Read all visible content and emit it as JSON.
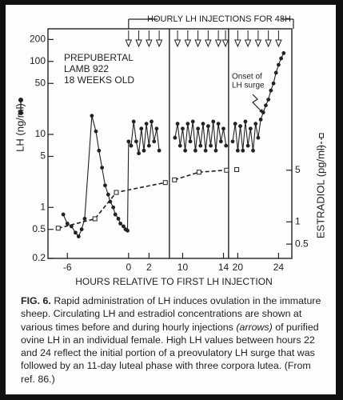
{
  "chart_data": {
    "type": "line",
    "injection_label": "HOURLY LH INJECTIONS FOR 48H",
    "annotations": [
      "PREPUBERTAL",
      "LAMB 922",
      "18 WEEKS OLD"
    ],
    "surge_label": [
      "Onset of",
      "LH surge"
    ],
    "ylabel": "LH (ng/ml)",
    "y2label": "ESTRADIOL (pg/ml)",
    "xlabel": "HOURS RELATIVE TO FIRST LH INJECTION",
    "log_scale": true,
    "ylim": [
      0.2,
      280
    ],
    "yticks": [
      0.2,
      0.5,
      1,
      5,
      10,
      50,
      100,
      200
    ],
    "y2lim": [
      0.32,
      410
    ],
    "y2ticks": [
      0.5,
      1,
      5
    ],
    "panels": [
      {
        "xlim": [
          -7.9,
          4.0
        ],
        "xticks": [
          -6,
          0,
          2
        ]
      },
      {
        "xlim": [
          8.7,
          14.5
        ],
        "xticks": [
          10,
          14
        ]
      },
      {
        "xlim": [
          19.1,
          25.3
        ],
        "xticks": [
          20,
          24
        ]
      }
    ],
    "injection_hours": [
      0,
      1,
      2,
      3,
      9.5,
      10.5,
      11.5,
      12.5,
      13.5,
      14.2,
      20,
      21,
      22,
      23,
      24
    ],
    "series": [
      {
        "name": "LH",
        "color": "#222",
        "marker": "filled-circle",
        "x": [
          -6.4,
          -6.0,
          -5.6,
          -5.2,
          -4.9,
          -4.6,
          -4.3,
          -3.6,
          -3.2,
          -2.9,
          -2.6,
          -2.3,
          -2.0,
          -1.8,
          -1.5,
          -1.3,
          -1.0,
          -0.8,
          -0.5,
          -0.3,
          -0.1,
          0.0,
          0.25,
          0.5,
          0.75,
          1.0,
          1.25,
          1.5,
          1.75,
          2.0,
          2.25,
          2.5,
          2.75,
          3.0,
          9.25,
          9.5,
          9.75,
          10.0,
          10.25,
          10.5,
          10.75,
          11.0,
          11.25,
          11.5,
          11.75,
          12.0,
          12.25,
          12.5,
          12.75,
          13.0,
          13.25,
          13.5,
          13.75,
          14.0,
          14.25,
          19.5,
          19.75,
          20.0,
          20.25,
          20.5,
          20.75,
          21.0,
          21.25,
          21.5,
          21.75,
          22.0,
          22.25,
          22.5,
          22.75,
          23.0,
          23.25,
          23.5,
          23.75,
          24.0,
          24.25,
          24.5
        ],
        "values": [
          0.8,
          0.6,
          0.55,
          0.45,
          0.4,
          0.5,
          0.7,
          18,
          11,
          6,
          3.5,
          2,
          1.5,
          1.2,
          1.0,
          0.8,
          0.7,
          0.6,
          0.55,
          0.5,
          0.48,
          8,
          7,
          15,
          8,
          5.5,
          12,
          6,
          14,
          7,
          15,
          8,
          12,
          6,
          9,
          14,
          7,
          12,
          6,
          14,
          8,
          15,
          6,
          12,
          7,
          14,
          6,
          13,
          7,
          15,
          6,
          14,
          8,
          12,
          7,
          8,
          14,
          6,
          13,
          6,
          15,
          7,
          12,
          6,
          14,
          9,
          16,
          20,
          25,
          30,
          40,
          50,
          70,
          90,
          110,
          130
        ]
      },
      {
        "name": "Estradiol",
        "color": "#222",
        "marker": "open-square",
        "dashed": true,
        "axis": "y2",
        "x": [
          -6.9,
          -3.3,
          -1.2,
          3.6,
          9.2,
          11.6,
          14.3,
          19.9
        ],
        "values": [
          0.82,
          1.1,
          2.5,
          3.4,
          3.7,
          4.7,
          5.0,
          5.1
        ]
      }
    ]
  },
  "caption": {
    "label": "FIG. 6.",
    "parts": [
      "Rapid administration of LH induces ovulation in the immature sheep. Circulating LH and estradiol concentrations are shown at various times before and during hourly injections",
      "(arrows)",
      "of purified ovine LH in an individual female. High LH values between hours 22 and 24 reflect the initial portion of a preovulatory LH surge that was followed by an 11-day luteal phase with three corpora lutea. (From ref. 86.)"
    ]
  }
}
